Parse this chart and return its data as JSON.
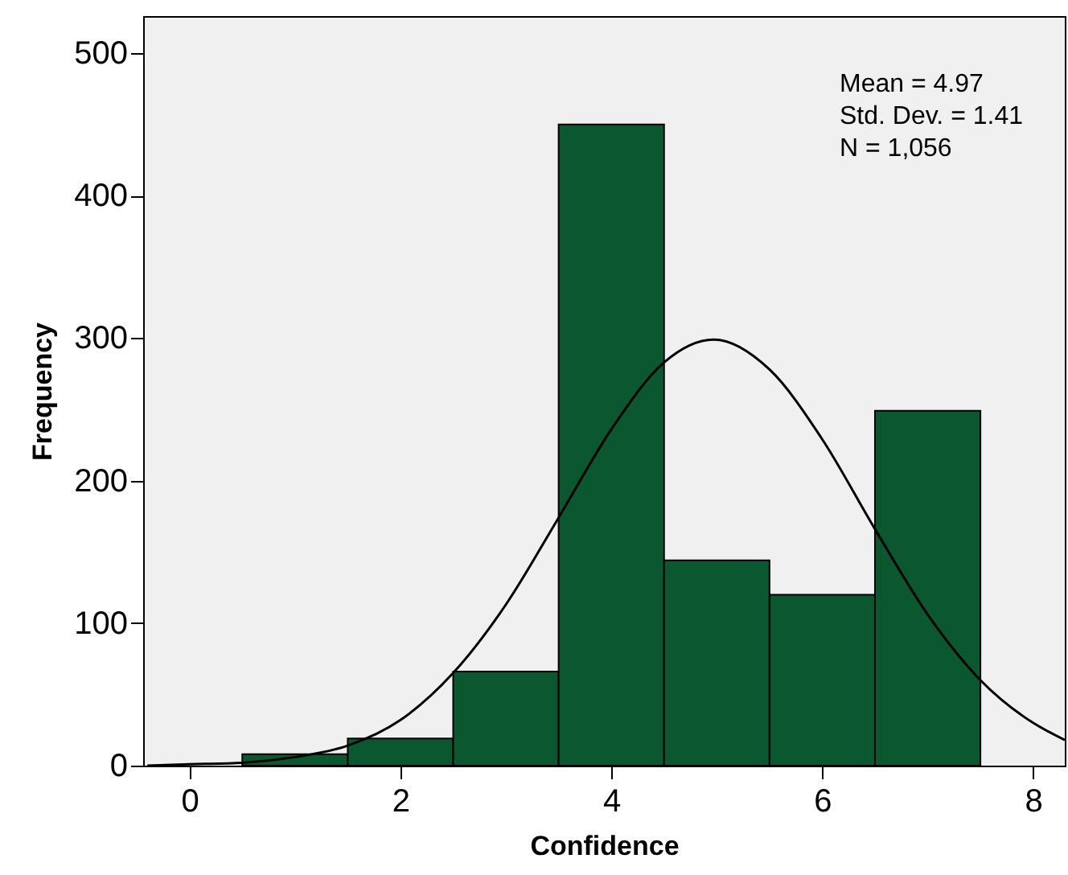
{
  "chart_data": {
    "type": "histogram",
    "xlabel": "Confidence",
    "ylabel": "Frequency",
    "bins": [
      0.5,
      1.5,
      2.5,
      3.5,
      4.5,
      5.5,
      6.5,
      7.5
    ],
    "values": [
      8,
      19,
      66,
      450,
      144,
      120,
      249
    ],
    "color": "#0b5730",
    "series": [
      {
        "type": "line",
        "color": "#000000",
        "x": [
          -0.4,
          0,
          0.5,
          1,
          1.5,
          2,
          2.5,
          3,
          3.5,
          4,
          4.5,
          4.97,
          5.5,
          6,
          6.5,
          7,
          7.5,
          8,
          8.3
        ],
        "values": [
          0,
          1,
          2,
          6,
          14,
          32,
          65,
          113,
          174,
          236,
          283,
          299,
          278,
          229,
          166,
          106,
          60,
          30,
          18
        ]
      }
    ],
    "xlim": [
      -0.44,
      8.3
    ],
    "xticks": [
      0,
      2,
      4,
      6,
      8
    ],
    "ylim": [
      0,
      526
    ],
    "yticks": [
      0,
      100,
      200,
      300,
      400,
      500
    ],
    "grid": false,
    "annotations": [
      "Mean = 4.97",
      "Std. Dev. = 1.41",
      "N = 1,056"
    ]
  }
}
